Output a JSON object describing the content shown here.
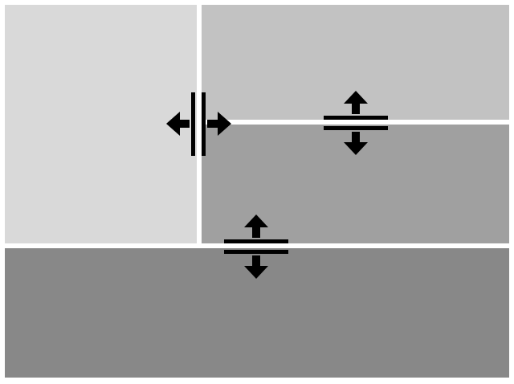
{
  "panes": {
    "top_left": {
      "color": "#d9d9d9"
    },
    "top_right": {
      "color": "#c2c2c2"
    },
    "middle_right": {
      "color": "#a0a0a0"
    },
    "bottom": {
      "color": "#888888"
    }
  },
  "splitters": {
    "color": "#ffffff"
  },
  "cursors": {
    "vertical_splitter": {
      "icon": "column-resize-icon"
    },
    "right_horizontal_splitter": {
      "icon": "row-resize-icon"
    },
    "bottom_horizontal_splitter": {
      "icon": "row-resize-icon"
    }
  }
}
